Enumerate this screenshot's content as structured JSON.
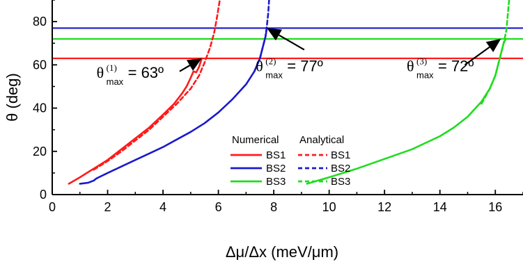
{
  "chart_data": {
    "type": "line",
    "xlabel": "Δμ/Δx (meV/μm)",
    "ylabel": "θ (deg)",
    "xlim": [
      0,
      17
    ],
    "ylim": [
      0,
      90
    ],
    "x_ticks": [
      "0",
      "2",
      "4",
      "6",
      "8",
      "10",
      "12",
      "14",
      "16"
    ],
    "y_ticks": [
      "0",
      "20",
      "40",
      "60",
      "80"
    ],
    "grid": false,
    "legend": {
      "placement": "center-right",
      "numerical_header": "Numerical",
      "analytical_header": "Analytical"
    },
    "series": [
      {
        "name": "BS1",
        "kind": "numerical",
        "style": "solid",
        "color": "#ff1a1a",
        "points": [
          [
            0.6,
            5
          ],
          [
            1.0,
            8
          ],
          [
            1.5,
            12
          ],
          [
            2.0,
            16
          ],
          [
            2.5,
            21
          ],
          [
            3.0,
            26
          ],
          [
            3.5,
            31
          ],
          [
            4.0,
            37
          ],
          [
            4.4,
            42
          ],
          [
            4.7,
            47
          ],
          [
            4.85,
            50
          ],
          [
            5.0,
            54
          ],
          [
            5.1,
            57
          ],
          [
            5.2,
            56.5
          ],
          [
            5.3,
            59
          ],
          [
            5.4,
            63
          ]
        ]
      },
      {
        "name": "BS1",
        "kind": "analytical",
        "style": "dashed",
        "color": "#ff1a1a",
        "points": [
          [
            1.5,
            11.5
          ],
          [
            2.0,
            15.5
          ],
          [
            2.5,
            20
          ],
          [
            3.0,
            25
          ],
          [
            3.5,
            30
          ],
          [
            4.0,
            36
          ],
          [
            4.5,
            42
          ],
          [
            5.0,
            49
          ],
          [
            5.3,
            55
          ],
          [
            5.5,
            61
          ],
          [
            5.7,
            68
          ],
          [
            5.85,
            75
          ],
          [
            5.95,
            82
          ],
          [
            6.05,
            90
          ]
        ]
      },
      {
        "name": "BS2",
        "kind": "numerical",
        "style": "solid",
        "color": "#1a1acc",
        "points": [
          [
            1.0,
            5
          ],
          [
            1.3,
            5.5
          ],
          [
            1.5,
            6.5
          ],
          [
            1.6,
            7.5
          ],
          [
            2.0,
            10
          ],
          [
            2.5,
            13
          ],
          [
            3.0,
            16
          ],
          [
            3.5,
            19
          ],
          [
            4.0,
            22
          ],
          [
            4.5,
            25.5
          ],
          [
            5.0,
            29
          ],
          [
            5.5,
            33
          ],
          [
            6.0,
            38
          ],
          [
            6.5,
            44
          ],
          [
            7.0,
            51
          ],
          [
            7.3,
            57
          ],
          [
            7.5,
            63
          ],
          [
            7.6,
            68
          ],
          [
            7.7,
            73
          ],
          [
            7.75,
            77
          ]
        ]
      },
      {
        "name": "BS2",
        "kind": "analytical",
        "style": "dashed",
        "color": "#1a1acc",
        "points": [
          [
            7.3,
            57
          ],
          [
            7.5,
            63
          ],
          [
            7.6,
            68
          ],
          [
            7.7,
            73
          ],
          [
            7.75,
            78
          ],
          [
            7.8,
            84
          ],
          [
            7.83,
            90
          ]
        ]
      },
      {
        "name": "BS3",
        "kind": "numerical",
        "style": "solid",
        "color": "#1edc1e",
        "points": [
          [
            9.2,
            5
          ],
          [
            10.0,
            8
          ],
          [
            11.0,
            12
          ],
          [
            12.0,
            16.5
          ],
          [
            13.0,
            21
          ],
          [
            14.0,
            27
          ],
          [
            14.5,
            31
          ],
          [
            15.0,
            36
          ],
          [
            15.5,
            43
          ],
          [
            15.8,
            49
          ],
          [
            16.0,
            55
          ],
          [
            16.1,
            60
          ],
          [
            16.2,
            65
          ],
          [
            16.3,
            70
          ],
          [
            16.38,
            72
          ]
        ]
      },
      {
        "name": "BS3",
        "kind": "analytical",
        "style": "dashed",
        "color": "#1edc1e",
        "points": [
          [
            15.5,
            42
          ],
          [
            15.8,
            49
          ],
          [
            16.0,
            55
          ],
          [
            16.1,
            60
          ],
          [
            16.2,
            65
          ],
          [
            16.3,
            70
          ],
          [
            16.4,
            76
          ],
          [
            16.45,
            83
          ],
          [
            16.5,
            90
          ]
        ]
      }
    ],
    "reference_lines": [
      {
        "y": 63,
        "color": "#ff1a1a"
      },
      {
        "y": 77,
        "color": "#1a1acc"
      },
      {
        "y": 72,
        "color": "#1edc1e"
      }
    ],
    "annotations": [
      {
        "symbol": "θ",
        "superscript": "(1)",
        "subscript": "max",
        "text": "= 63º",
        "target": [
          5.4,
          63
        ],
        "from": [
          4.6,
          57
        ],
        "label_at": [
          1.6,
          54
        ]
      },
      {
        "symbol": "θ",
        "superscript": "(2)",
        "subscript": "max",
        "text": "= 77º",
        "target": [
          7.75,
          77
        ],
        "from": [
          9.1,
          67
        ],
        "label_at": [
          7.35,
          57
        ]
      },
      {
        "symbol": "θ",
        "superscript": "(3)",
        "subscript": "max",
        "text": "= 72º",
        "target": [
          16.2,
          72
        ],
        "from": [
          14.9,
          60
        ],
        "label_at": [
          12.8,
          57
        ]
      }
    ]
  }
}
